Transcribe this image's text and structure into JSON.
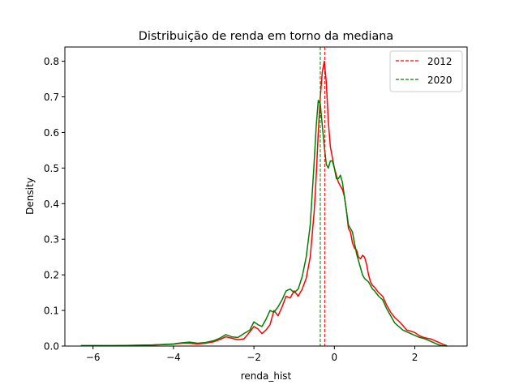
{
  "chart_data": {
    "type": "line",
    "title": "Distribuição de renda em torno da mediana",
    "xlabel": "renda_hist",
    "ylabel": "Density",
    "xlim": [
      -6.7,
      3.3
    ],
    "ylim": [
      0,
      0.84
    ],
    "xticks": [
      -6,
      -4,
      -2,
      0,
      2
    ],
    "yticks": [
      0.0,
      0.1,
      0.2,
      0.3,
      0.4,
      0.5,
      0.6,
      0.7,
      0.8
    ],
    "xtick_labels": [
      "−6",
      "−4",
      "−2",
      "0",
      "2"
    ],
    "ytick_labels": [
      "0.0",
      "0.1",
      "0.2",
      "0.3",
      "0.4",
      "0.5",
      "0.6",
      "0.7",
      "0.8"
    ],
    "grid": false,
    "legend_placement": "top-right",
    "series": [
      {
        "name": "2012",
        "color": "#ff0000",
        "median": -0.24,
        "x": [
          -6.3,
          -5.5,
          -5.0,
          -4.5,
          -4.0,
          -3.8,
          -3.6,
          -3.4,
          -3.2,
          -3.0,
          -2.85,
          -2.7,
          -2.55,
          -2.4,
          -2.25,
          -2.1,
          -2.0,
          -1.9,
          -1.8,
          -1.7,
          -1.6,
          -1.5,
          -1.4,
          -1.3,
          -1.2,
          -1.1,
          -1.0,
          -0.9,
          -0.8,
          -0.7,
          -0.6,
          -0.5,
          -0.45,
          -0.4,
          -0.35,
          -0.3,
          -0.25,
          -0.2,
          -0.15,
          -0.1,
          -0.05,
          0.0,
          0.05,
          0.1,
          0.15,
          0.2,
          0.25,
          0.3,
          0.35,
          0.4,
          0.45,
          0.5,
          0.55,
          0.6,
          0.65,
          0.7,
          0.75,
          0.8,
          0.85,
          0.9,
          0.95,
          1.0,
          1.1,
          1.2,
          1.3,
          1.4,
          1.5,
          1.6,
          1.7,
          1.8,
          1.9,
          2.0,
          2.1,
          2.2,
          2.3,
          2.4,
          2.5,
          2.6,
          2.7,
          2.8
        ],
        "y": [
          0.001,
          0.001,
          0.002,
          0.003,
          0.005,
          0.008,
          0.008,
          0.006,
          0.008,
          0.012,
          0.018,
          0.026,
          0.022,
          0.018,
          0.02,
          0.04,
          0.055,
          0.048,
          0.035,
          0.045,
          0.06,
          0.1,
          0.085,
          0.11,
          0.14,
          0.135,
          0.155,
          0.14,
          0.16,
          0.19,
          0.25,
          0.38,
          0.48,
          0.6,
          0.7,
          0.77,
          0.8,
          0.74,
          0.63,
          0.56,
          0.53,
          0.5,
          0.48,
          0.46,
          0.45,
          0.44,
          0.42,
          0.38,
          0.33,
          0.32,
          0.29,
          0.275,
          0.27,
          0.25,
          0.245,
          0.255,
          0.25,
          0.23,
          0.2,
          0.18,
          0.17,
          0.165,
          0.15,
          0.14,
          0.115,
          0.095,
          0.08,
          0.07,
          0.058,
          0.045,
          0.042,
          0.038,
          0.03,
          0.025,
          0.022,
          0.02,
          0.015,
          0.01,
          0.005,
          0.001
        ]
      },
      {
        "name": "2020",
        "color": "#008000",
        "median": -0.35,
        "x": [
          -6.3,
          -5.5,
          -5.0,
          -4.5,
          -4.0,
          -3.8,
          -3.6,
          -3.4,
          -3.2,
          -3.0,
          -2.85,
          -2.7,
          -2.55,
          -2.4,
          -2.25,
          -2.1,
          -2.0,
          -1.9,
          -1.8,
          -1.7,
          -1.6,
          -1.5,
          -1.4,
          -1.3,
          -1.2,
          -1.1,
          -1.0,
          -0.9,
          -0.8,
          -0.7,
          -0.6,
          -0.5,
          -0.45,
          -0.4,
          -0.35,
          -0.3,
          -0.25,
          -0.2,
          -0.15,
          -0.1,
          -0.05,
          0.0,
          0.05,
          0.1,
          0.15,
          0.2,
          0.25,
          0.3,
          0.35,
          0.4,
          0.45,
          0.5,
          0.55,
          0.6,
          0.65,
          0.7,
          0.75,
          0.8,
          0.85,
          0.9,
          0.95,
          1.0,
          1.1,
          1.2,
          1.3,
          1.4,
          1.5,
          1.6,
          1.7,
          1.8,
          1.9,
          2.0,
          2.1,
          2.2,
          2.3,
          2.4,
          2.5,
          2.6,
          2.7,
          2.8
        ],
        "y": [
          0.001,
          0.001,
          0.002,
          0.003,
          0.006,
          0.009,
          0.011,
          0.008,
          0.01,
          0.015,
          0.022,
          0.032,
          0.026,
          0.024,
          0.035,
          0.045,
          0.068,
          0.06,
          0.055,
          0.075,
          0.1,
          0.095,
          0.11,
          0.13,
          0.155,
          0.16,
          0.15,
          0.16,
          0.195,
          0.25,
          0.34,
          0.52,
          0.62,
          0.69,
          0.68,
          0.62,
          0.56,
          0.51,
          0.5,
          0.52,
          0.52,
          0.5,
          0.47,
          0.47,
          0.48,
          0.46,
          0.42,
          0.38,
          0.34,
          0.33,
          0.32,
          0.29,
          0.26,
          0.24,
          0.22,
          0.2,
          0.19,
          0.185,
          0.18,
          0.17,
          0.16,
          0.155,
          0.14,
          0.13,
          0.105,
          0.085,
          0.065,
          0.055,
          0.045,
          0.04,
          0.035,
          0.03,
          0.025,
          0.022,
          0.018,
          0.013,
          0.008,
          0.003,
          0.001,
          0.0
        ]
      }
    ]
  }
}
